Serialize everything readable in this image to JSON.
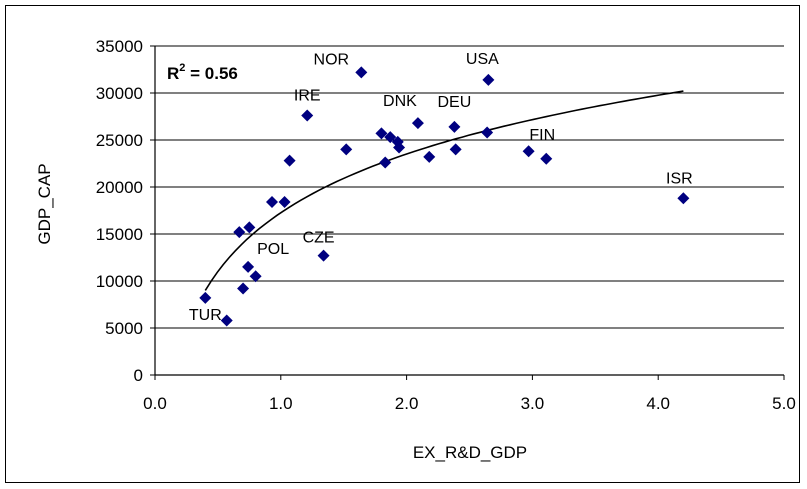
{
  "chart_data": {
    "type": "scatter",
    "title": "",
    "xlabel": "EX_R&D_GDP",
    "ylabel": "GDP_CAP",
    "xlim": [
      0,
      5
    ],
    "ylim": [
      0,
      35000
    ],
    "x_ticks": [
      "0.0",
      "1.0",
      "2.0",
      "3.0",
      "4.0",
      "5.0"
    ],
    "y_ticks": [
      "0",
      "5000",
      "10000",
      "15000",
      "20000",
      "25000",
      "30000",
      "35000"
    ],
    "grid": "horizontal",
    "marker_color": "#000080",
    "trend_color": "#000000",
    "annotation": {
      "prefix": "R",
      "sup": "2",
      "suffix": " = 0.56"
    },
    "trendline": {
      "type": "logarithmic",
      "x_range": [
        0.4,
        4.2
      ],
      "y_at_start": 9000,
      "y_at_end": 30200
    },
    "points": [
      {
        "x": 0.4,
        "y": 8200,
        "label": "TUR"
      },
      {
        "x": 0.57,
        "y": 5800,
        "label": ""
      },
      {
        "x": 0.7,
        "y": 9200,
        "label": ""
      },
      {
        "x": 0.67,
        "y": 15200,
        "label": ""
      },
      {
        "x": 0.75,
        "y": 15700,
        "label": ""
      },
      {
        "x": 0.74,
        "y": 11500,
        "label": "POL"
      },
      {
        "x": 0.8,
        "y": 10500,
        "label": ""
      },
      {
        "x": 0.93,
        "y": 18400,
        "label": ""
      },
      {
        "x": 1.03,
        "y": 18400,
        "label": ""
      },
      {
        "x": 1.07,
        "y": 22800,
        "label": ""
      },
      {
        "x": 1.21,
        "y": 27600,
        "label": "IRE"
      },
      {
        "x": 1.34,
        "y": 12700,
        "label": "CZE"
      },
      {
        "x": 1.52,
        "y": 24000,
        "label": ""
      },
      {
        "x": 1.64,
        "y": 32200,
        "label": "NOR"
      },
      {
        "x": 1.8,
        "y": 25700,
        "label": ""
      },
      {
        "x": 1.83,
        "y": 22600,
        "label": ""
      },
      {
        "x": 1.87,
        "y": 25300,
        "label": ""
      },
      {
        "x": 1.93,
        "y": 24800,
        "label": ""
      },
      {
        "x": 1.94,
        "y": 24200,
        "label": ""
      },
      {
        "x": 2.09,
        "y": 26800,
        "label": "DNK"
      },
      {
        "x": 2.18,
        "y": 23200,
        "label": ""
      },
      {
        "x": 2.38,
        "y": 26400,
        "label": "DEU"
      },
      {
        "x": 2.39,
        "y": 24000,
        "label": ""
      },
      {
        "x": 2.64,
        "y": 25800,
        "label": ""
      },
      {
        "x": 2.65,
        "y": 31400,
        "label": "USA"
      },
      {
        "x": 2.97,
        "y": 23800,
        "label": ""
      },
      {
        "x": 3.11,
        "y": 23000,
        "label": "FIN"
      },
      {
        "x": 4.2,
        "y": 18800,
        "label": "ISR"
      }
    ]
  }
}
